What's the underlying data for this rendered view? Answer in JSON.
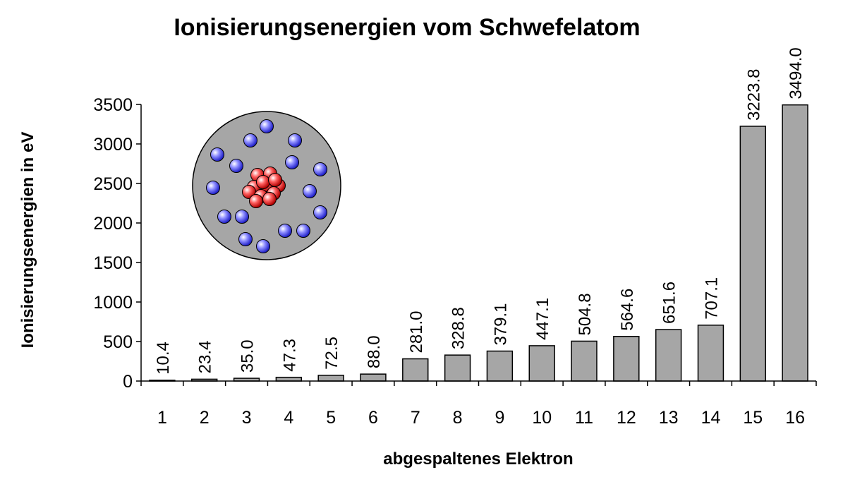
{
  "chart_data": {
    "type": "bar",
    "title": "Ionisierungsenergien vom Schwefelatom",
    "xlabel": "abgespaltenes Elektron",
    "ylabel": "Ionisierungsenergien in eV",
    "categories": [
      "1",
      "2",
      "3",
      "4",
      "5",
      "6",
      "7",
      "8",
      "9",
      "10",
      "11",
      "12",
      "13",
      "14",
      "15",
      "16"
    ],
    "values": [
      10.4,
      23.4,
      35.0,
      47.3,
      72.5,
      88.0,
      281.0,
      328.8,
      379.1,
      447.1,
      504.8,
      564.6,
      651.6,
      707.1,
      3223.8,
      3494.0
    ],
    "data_labels": [
      "10.4",
      "23.4",
      "35.0",
      "47.3",
      "72.5",
      "88.0",
      "281.0",
      "328.8",
      "379.1",
      "447.1",
      "504.8",
      "564.6",
      "651.6",
      "707.1",
      "3223.8",
      "3494.0"
    ],
    "ylim": [
      0,
      3500
    ],
    "yticks": [
      0,
      500,
      1000,
      1500,
      2000,
      2500,
      3000,
      3500
    ],
    "grid": false,
    "legend": "none",
    "bar_color": "#a6a6a6",
    "bar_edge_color": "#000000"
  },
  "inset": {
    "name": "atom-model-illustration",
    "background_color": "#a6a6a6",
    "electron_color": "#6f6fff",
    "nucleus_color": "#ff4a4a",
    "electron_count": 16
  }
}
